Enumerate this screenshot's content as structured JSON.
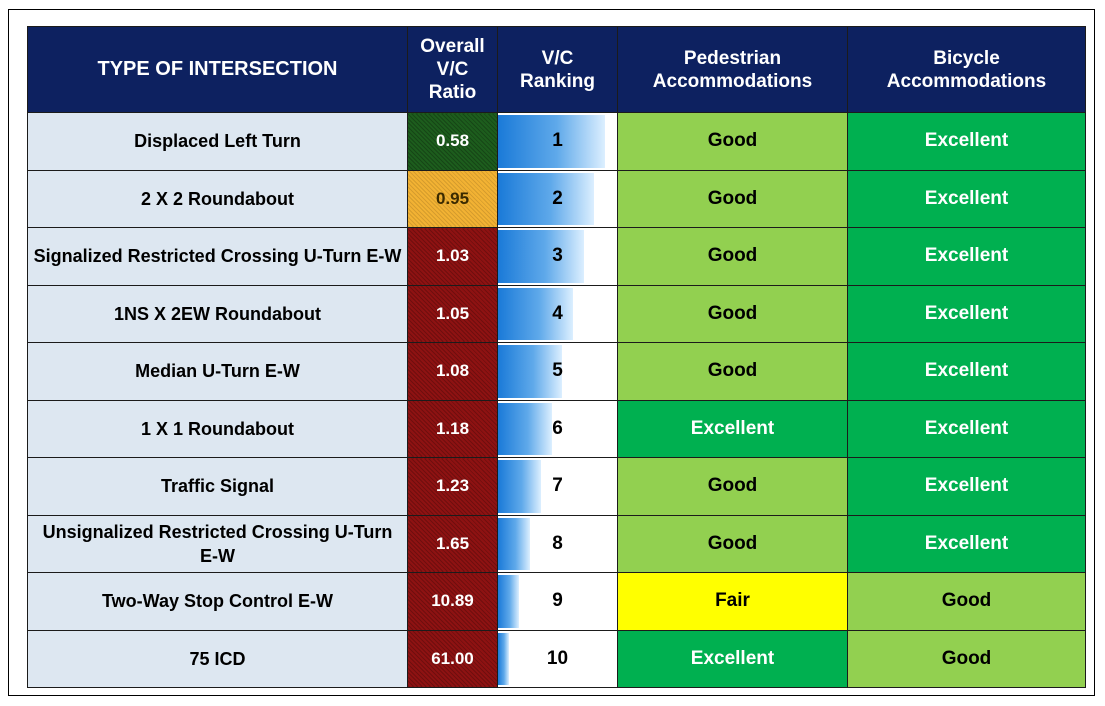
{
  "table": {
    "headers": {
      "type": "TYPE OF INTERSECTION",
      "ratio": "Overall V/C Ratio",
      "ranking": "V/C Ranking",
      "pedestrian": "Pedestrian Accommodations",
      "bicycle": "Bicycle Accommodations"
    },
    "rows": [
      {
        "type": "Displaced Left Turn",
        "ratio": "0.58",
        "ratio_color": "green",
        "ranking": "1",
        "pedestrian": "Good",
        "bicycle": "Excellent"
      },
      {
        "type": "2 X 2 Roundabout",
        "ratio": "0.95",
        "ratio_color": "orange",
        "ranking": "2",
        "pedestrian": "Good",
        "bicycle": "Excellent"
      },
      {
        "type": "Signalized Restricted Crossing U-Turn E-W",
        "ratio": "1.03",
        "ratio_color": "red",
        "ranking": "3",
        "pedestrian": "Good",
        "bicycle": "Excellent"
      },
      {
        "type": "1NS X 2EW Roundabout",
        "ratio": "1.05",
        "ratio_color": "red",
        "ranking": "4",
        "pedestrian": "Good",
        "bicycle": "Excellent"
      },
      {
        "type": "Median U-Turn E-W",
        "ratio": "1.08",
        "ratio_color": "red",
        "ranking": "5",
        "pedestrian": "Good",
        "bicycle": "Excellent"
      },
      {
        "type": "1 X 1 Roundabout",
        "ratio": "1.18",
        "ratio_color": "red",
        "ranking": "6",
        "pedestrian": "Excellent",
        "bicycle": "Excellent"
      },
      {
        "type": "Traffic Signal",
        "ratio": "1.23",
        "ratio_color": "red",
        "ranking": "7",
        "pedestrian": "Good",
        "bicycle": "Excellent"
      },
      {
        "type": "Unsignalized Restricted Crossing U-Turn E-W",
        "ratio": "1.65",
        "ratio_color": "red",
        "ranking": "8",
        "pedestrian": "Good",
        "bicycle": "Excellent"
      },
      {
        "type": "Two-Way Stop Control E-W",
        "ratio": "10.89",
        "ratio_color": "red",
        "ranking": "9",
        "pedestrian": "Fair",
        "bicycle": "Good"
      },
      {
        "type": "75 ICD",
        "ratio": "61.00",
        "ratio_color": "red",
        "ranking": "10",
        "pedestrian": "Excellent",
        "bicycle": "Good"
      }
    ]
  },
  "chart_data": {
    "type": "table",
    "columns": [
      "TYPE OF INTERSECTION",
      "Overall V/C Ratio",
      "V/C Ranking",
      "Pedestrian Accommodations",
      "Bicycle Accommodations"
    ],
    "rank_bar_scale": [
      1,
      10
    ],
    "rating_colors": {
      "Excellent": "#00b050",
      "Good": "#92d050",
      "Fair": "#ffff00"
    },
    "ratio_colors": {
      "green": "#1d5d1d",
      "orange": "#f2b233",
      "red": "#8e1212"
    },
    "header_color": "#0d2160",
    "type_cell_color": "#dde7f1"
  }
}
